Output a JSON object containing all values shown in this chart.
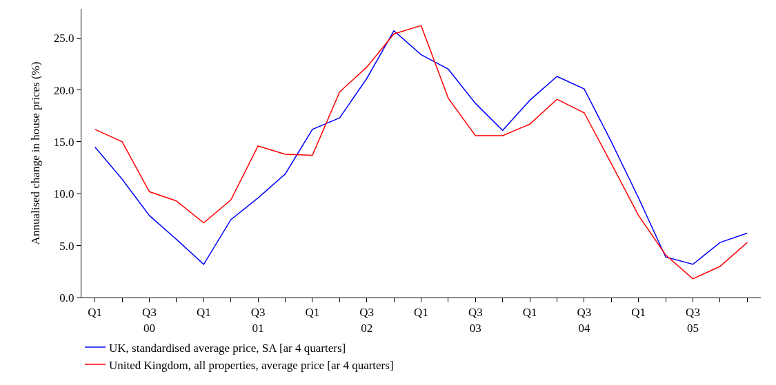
{
  "chart_data": {
    "type": "line",
    "ylabel": "Annualised change in house prices (%)",
    "categories": [
      "Q1",
      null,
      "Q3\n00",
      null,
      "Q1",
      null,
      "Q3\n01",
      null,
      "Q1",
      null,
      "Q3\n02",
      null,
      "Q1",
      null,
      "Q3\n03",
      null,
      "Q1",
      null,
      "Q3\n04",
      null,
      "Q1",
      null,
      "Q3\n05",
      null,
      null
    ],
    "series": [
      {
        "name": "UK, standardised average price, SA [ar 4 quarters]",
        "color": "#0000ff",
        "values": [
          14.5,
          11.4,
          7.9,
          5.6,
          3.2,
          7.5,
          9.6,
          11.9,
          16.2,
          17.3,
          21.1,
          25.7,
          23.4,
          22.0,
          18.7,
          16.1,
          19.0,
          21.3,
          20.1,
          15.0,
          9.6,
          3.9,
          3.2,
          5.3,
          6.2
        ]
      },
      {
        "name": "United Kingdom, all properties, average price [ar 4 quarters]",
        "color": "#ff0000",
        "values": [
          16.2,
          15.0,
          10.2,
          9.3,
          7.2,
          9.4,
          14.6,
          13.8,
          13.7,
          19.8,
          22.2,
          25.4,
          26.2,
          19.2,
          15.6,
          15.6,
          16.7,
          19.1,
          17.8,
          12.9,
          7.9,
          4.1,
          1.8,
          3.0,
          5.3
        ]
      }
    ],
    "ylim": [
      0,
      27.8
    ],
    "yticks": [
      {
        "value": 0,
        "label": "0.0"
      },
      {
        "value": 5,
        "label": "5.0"
      },
      {
        "value": 10,
        "label": "10.0"
      },
      {
        "value": 15,
        "label": "15.0"
      },
      {
        "value": 20,
        "label": "20.0"
      },
      {
        "value": 25,
        "label": "25.0"
      }
    ],
    "legend": "bottom"
  }
}
